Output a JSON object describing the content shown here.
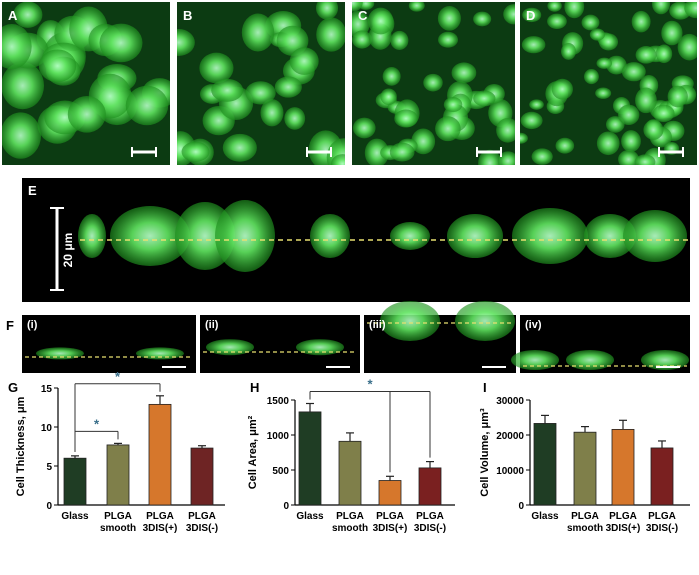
{
  "image_labels": {
    "panels": [
      "A",
      "B",
      "C",
      "D"
    ],
    "section_e": "E",
    "scale_e": "20 μm",
    "section_f": "F",
    "subpanels": [
      "(i)",
      "(ii)",
      "(iii)",
      "(iv)"
    ]
  },
  "chart_data": [
    {
      "type": "bar",
      "panel_label": "G",
      "ylabel": "Cell Thickness, μm",
      "categories": [
        [
          "Glass"
        ],
        [
          "PLGA",
          "smooth"
        ],
        [
          "PLGA",
          "3DIS(+)"
        ],
        [
          "PLGA",
          "3DIS(-)"
        ]
      ],
      "values": [
        6.0,
        7.7,
        12.9,
        7.3
      ],
      "errors": [
        0.3,
        0.2,
        1.1,
        0.3
      ],
      "colors": [
        "#1f3d24",
        "#7f7f4a",
        "#d6772c",
        "#6e2424"
      ],
      "ylim": [
        0,
        15
      ],
      "yticks": [
        0,
        5,
        10,
        15
      ],
      "significance": [
        {
          "from": 0,
          "to": [
            1
          ],
          "label": "*"
        },
        {
          "from": 0,
          "to": [
            2
          ],
          "label": "*"
        }
      ]
    },
    {
      "type": "bar",
      "panel_label": "H",
      "ylabel": "Cell Area, μm²",
      "categories": [
        [
          "Glass"
        ],
        [
          "PLGA",
          "smooth"
        ],
        [
          "PLGA",
          "3DIS(+)"
        ],
        [
          "PLGA",
          "3DIS(-)"
        ]
      ],
      "values": [
        1330,
        910,
        350,
        530
      ],
      "errors": [
        120,
        120,
        60,
        90
      ],
      "colors": [
        "#1f3d24",
        "#7f7f4a",
        "#d6772c",
        "#7a2020"
      ],
      "ylim": [
        0,
        1500
      ],
      "yticks": [
        0,
        500,
        1000,
        1500
      ],
      "significance": [
        {
          "from": 0,
          "to": [
            2,
            3
          ],
          "label": "*"
        }
      ]
    },
    {
      "type": "bar",
      "panel_label": "I",
      "ylabel": "Cell Volume, μm³",
      "categories": [
        [
          "Glass"
        ],
        [
          "PLGA",
          "smooth"
        ],
        [
          "PLGA",
          "3DIS(+)"
        ],
        [
          "PLGA",
          "3DIS(-)"
        ]
      ],
      "values": [
        23300,
        20800,
        21600,
        16300
      ],
      "errors": [
        2300,
        1600,
        2600,
        2000
      ],
      "colors": [
        "#1f3d24",
        "#7f7f4a",
        "#d6772c",
        "#7a2020"
      ],
      "ylim": [
        0,
        30000
      ],
      "yticks": [
        0,
        10000,
        20000,
        30000
      ],
      "significance": []
    }
  ]
}
